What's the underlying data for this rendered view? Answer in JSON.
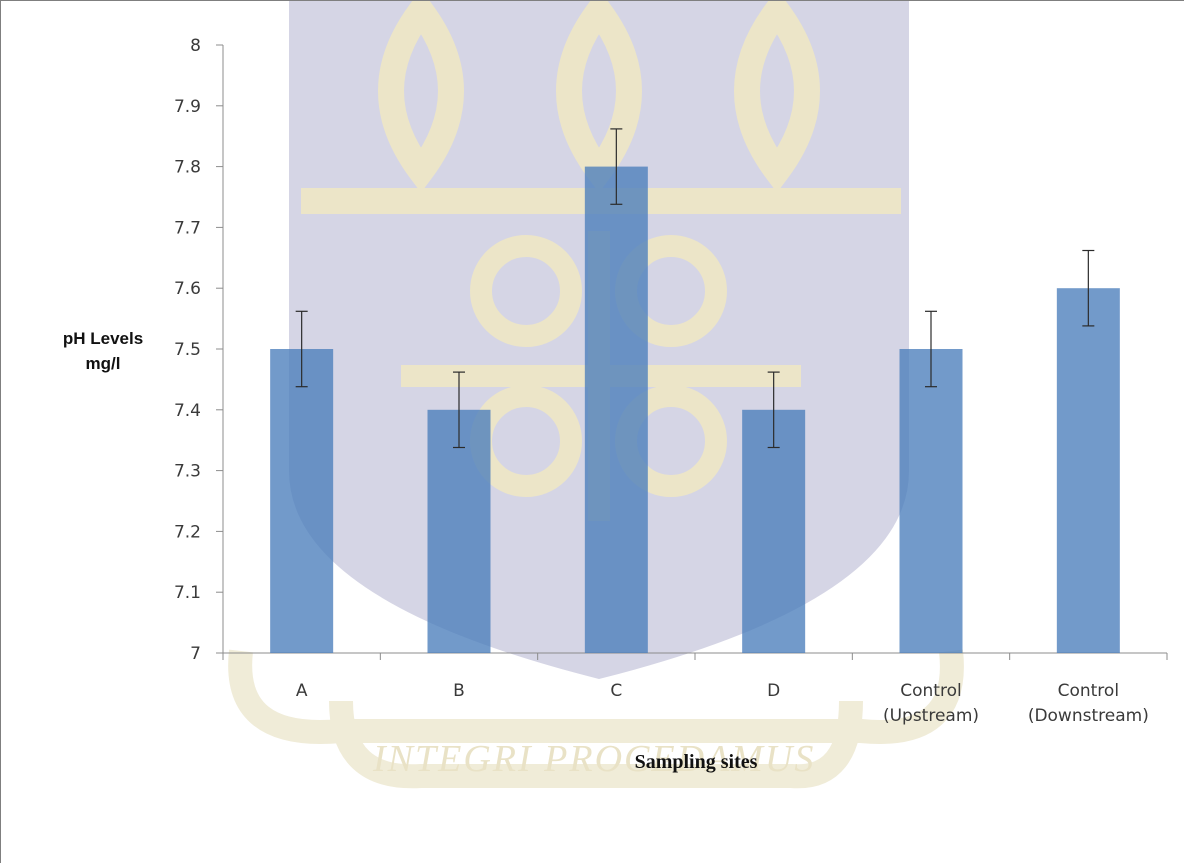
{
  "chart_data": {
    "type": "bar",
    "title": "",
    "xlabel": "Sampling sites",
    "ylabel_lines": [
      "pH Levels",
      "mg/l"
    ],
    "categories": [
      {
        "lines": [
          "A"
        ]
      },
      {
        "lines": [
          "B"
        ]
      },
      {
        "lines": [
          "C"
        ]
      },
      {
        "lines": [
          "D"
        ]
      },
      {
        "lines": [
          "Control",
          "(Upstream)"
        ]
      },
      {
        "lines": [
          "Control",
          "(Downstream)"
        ]
      }
    ],
    "values": [
      7.5,
      7.4,
      7.8,
      7.4,
      7.5,
      7.6
    ],
    "error": [
      0.062,
      0.062,
      0.062,
      0.062,
      0.062,
      0.062
    ],
    "ylim": [
      7,
      8
    ],
    "yticks": [
      "7",
      "7.1",
      "7.2",
      "7.3",
      "7.4",
      "7.5",
      "7.6",
      "7.7",
      "7.8",
      "7.9",
      "8"
    ],
    "grid": false,
    "colors": {
      "bar": "#4a7ebb",
      "axis": "#8c8c8c",
      "error_bar": "#2b2b2b"
    }
  },
  "watermark": {
    "motto": "INTEGRI PROCEDAMUS",
    "colors": {
      "crest": "#d5d5e5",
      "emblem": "#ece5c8",
      "ribbon": "#f0ecd8"
    }
  }
}
